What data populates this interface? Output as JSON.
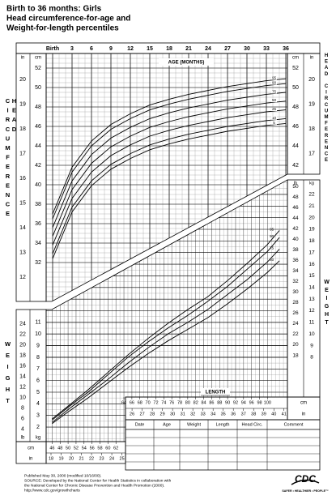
{
  "title_lines": [
    "Birth to 36 months: Girls",
    "Head circumference-for-age and",
    "Weight-for-length percentiles"
  ],
  "units": [
    "in",
    "cm",
    "lb",
    "kg"
  ],
  "chart_data": [
    {
      "type": "line",
      "xlabel": "AGE (MONTHS)",
      "ylabel": "HEAD CIRCUMFERENCE",
      "x": [
        0,
        3,
        6,
        9,
        12,
        15,
        18,
        21,
        24,
        27,
        30,
        33,
        36
      ],
      "xlim": [
        -1,
        36.25
      ],
      "xticks": [
        {
          "value": 0,
          "label": "Birth"
        },
        3,
        6,
        9,
        12,
        15,
        18,
        21,
        24,
        27,
        30,
        33,
        36
      ],
      "ylim": [
        28,
        53.5
      ],
      "yticks": [
        32,
        34,
        36,
        38,
        40,
        42,
        44,
        46,
        48,
        50,
        52
      ],
      "y2lim": [
        11.02,
        21.06
      ],
      "y2ticks": [
        12,
        13,
        14,
        15,
        16,
        17,
        18,
        19,
        20
      ],
      "right_yticks": [
        42,
        44,
        46,
        48,
        50,
        52
      ],
      "right_y2ticks": [
        17,
        18,
        19,
        20
      ],
      "grid": true,
      "series": [
        {
          "name": "95",
          "color": "#000000",
          "values": [
            37.0,
            41.8,
            44.5,
            46.2,
            47.3,
            48.2,
            48.8,
            49.3,
            49.7,
            50.1,
            50.4,
            50.7,
            50.9
          ]
        },
        {
          "name": "90",
          "color": "#000000",
          "values": [
            36.5,
            41.3,
            44.0,
            45.7,
            46.8,
            47.7,
            48.3,
            48.8,
            49.2,
            49.6,
            49.9,
            50.2,
            50.4
          ]
        },
        {
          "name": "75",
          "color": "#000000",
          "values": [
            35.6,
            40.4,
            43.1,
            44.8,
            45.9,
            46.8,
            47.4,
            47.9,
            48.3,
            48.7,
            49.0,
            49.3,
            49.5
          ]
        },
        {
          "name": "50",
          "color": "#000000",
          "values": [
            34.7,
            39.5,
            42.2,
            43.9,
            45.0,
            45.9,
            46.5,
            47.0,
            47.4,
            47.8,
            48.1,
            48.4,
            48.6
          ]
        },
        {
          "name": "25",
          "color": "#000000",
          "values": [
            33.8,
            38.6,
            41.3,
            43.0,
            44.1,
            45.0,
            45.6,
            46.1,
            46.5,
            46.9,
            47.2,
            47.5,
            47.7
          ]
        },
        {
          "name": "10",
          "color": "#000000",
          "values": [
            32.9,
            37.7,
            40.4,
            42.1,
            43.2,
            44.1,
            44.7,
            45.2,
            45.6,
            46.0,
            46.3,
            46.6,
            46.8
          ]
        },
        {
          "name": "5",
          "color": "#000000",
          "values": [
            32.4,
            37.2,
            39.9,
            41.6,
            42.7,
            43.6,
            44.2,
            44.7,
            45.1,
            45.5,
            45.8,
            46.1,
            46.3
          ]
        }
      ]
    },
    {
      "type": "line",
      "xlabel": "LENGTH",
      "ylabel": "WEIGHT",
      "x": [
        46,
        50,
        55,
        60,
        65,
        70,
        75,
        80,
        85,
        90,
        95,
        100,
        103
      ],
      "xlim": [
        44.5,
        105
      ],
      "xticks": [
        46,
        48,
        50,
        52,
        54,
        56,
        58,
        60,
        62,
        64,
        66,
        68,
        70,
        72,
        74,
        76,
        78,
        80,
        82,
        84,
        86,
        88,
        90,
        92,
        94,
        96,
        98,
        100
      ],
      "x2lim": [
        17.52,
        41.34
      ],
      "x2ticks": [
        18,
        19,
        20,
        21,
        22,
        23,
        24,
        25,
        26,
        27,
        28,
        29,
        30,
        31,
        32,
        33,
        34,
        35,
        36,
        37,
        38,
        39,
        40,
        41
      ],
      "ylim": [
        0.75,
        23.25
      ],
      "yticks": [
        2,
        3,
        4,
        5,
        6,
        7,
        8,
        9,
        10,
        11
      ],
      "y2lim": [
        1.65,
        51.26
      ],
      "y2ticks": [
        4,
        6,
        8,
        10,
        12,
        14,
        16,
        18,
        20,
        22,
        24
      ],
      "right_yticks": [
        8,
        9,
        10,
        11,
        12,
        13,
        14,
        15,
        16,
        17,
        18,
        19,
        20,
        21,
        22
      ],
      "right_y2ticks": [
        18,
        20,
        22,
        24,
        26,
        28,
        30,
        32,
        34,
        36,
        38,
        40,
        42,
        44,
        46,
        48,
        50
      ],
      "grid": true,
      "series": [
        {
          "name": "95",
          "color": "#000000",
          "values": [
            2.7,
            3.8,
            5.2,
            6.7,
            8.2,
            9.6,
            10.9,
            12.1,
            13.2,
            14.6,
            16.1,
            17.7,
            18.9
          ]
        },
        {
          "name": "90",
          "color": "#000000",
          "values": [
            2.6,
            3.7,
            5.0,
            6.5,
            8.0,
            9.3,
            10.5,
            11.6,
            12.8,
            14.1,
            15.6,
            17.1,
            18.3
          ]
        },
        {
          "name": "75",
          "color": "#000000",
          "values": [
            2.4,
            3.5,
            4.8,
            6.1,
            7.5,
            8.8,
            10.0,
            11.0,
            12.1,
            13.4,
            14.7,
            16.2,
            17.3
          ]
        },
        {
          "name": "50",
          "color": "#000000",
          "values": [
            2.3,
            3.3,
            4.5,
            5.8,
            7.1,
            8.3,
            9.4,
            10.4,
            11.4,
            12.6,
            13.9,
            15.3,
            16.3
          ]
        },
        {
          "name": "25",
          "color": "#000000",
          "values": [
            2.2,
            3.1,
            4.3,
            5.5,
            6.7,
            7.9,
            8.9,
            9.9,
            10.8,
            12.0,
            13.2,
            14.5,
            15.5
          ]
        },
        {
          "name": "10",
          "color": "#000000",
          "values": [
            2.1,
            3.0,
            4.1,
            5.2,
            6.4,
            7.5,
            8.5,
            9.4,
            10.3,
            11.3,
            12.5,
            13.8,
            14.7
          ]
        },
        {
          "name": "5",
          "color": "#000000",
          "values": [
            2.0,
            2.9,
            3.9,
            5.0,
            6.2,
            7.2,
            8.2,
            9.0,
            9.9,
            11.0,
            12.1,
            13.3,
            14.2
          ]
        }
      ]
    }
  ],
  "table": {
    "headers": [
      "Date",
      "Age",
      "Weight",
      "Length",
      "Head Circ.",
      "Comment"
    ]
  },
  "footer": [
    "Published May 30, 2000 (modified 10/16/00).",
    "SOURCE: Developed by the National Center for Health Statistics in collaboration with",
    "the National Center for Chronic Disease Prevention and Health Promotion (2000).",
    "http://www.cdc.gov/growthcharts"
  ],
  "logo": {
    "name": "CDC",
    "tagline": "SAFER • HEALTHIER • PEOPLE™"
  }
}
